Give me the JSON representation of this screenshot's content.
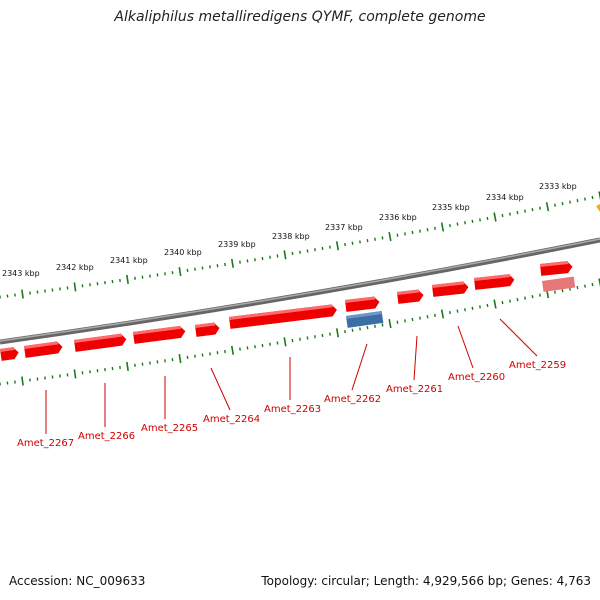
{
  "title": "Alkaliphilus metalliredigens QYMF, complete genome",
  "footer": {
    "accession": "Accession: NC_009633",
    "topology": "Topology: circular; Length: 4,929,566 bp; Genes: 4,763"
  },
  "colors": {
    "forward_gene": "#ee0000",
    "reverse_gene": "#3a6ea5",
    "pseudo_gene": "#e87878",
    "backbone": "#888888",
    "ticks": "#1a7a1a",
    "label": "#cc0000"
  },
  "scale_labels": [
    "2343 kbp",
    "2342 kbp",
    "2341 kbp",
    "2340 kbp",
    "2339 kbp",
    "2338 kbp",
    "2337 kbp",
    "2336 kbp",
    "2335 kbp",
    "2334 kbp",
    "2333 kbp"
  ],
  "gene_labels": [
    "Amet_2267",
    "Amet_2266",
    "Amet_2265",
    "Amet_2264",
    "Amet_2263",
    "Amet_2262",
    "Amet_2261",
    "Amet_2260",
    "Amet_2259"
  ]
}
